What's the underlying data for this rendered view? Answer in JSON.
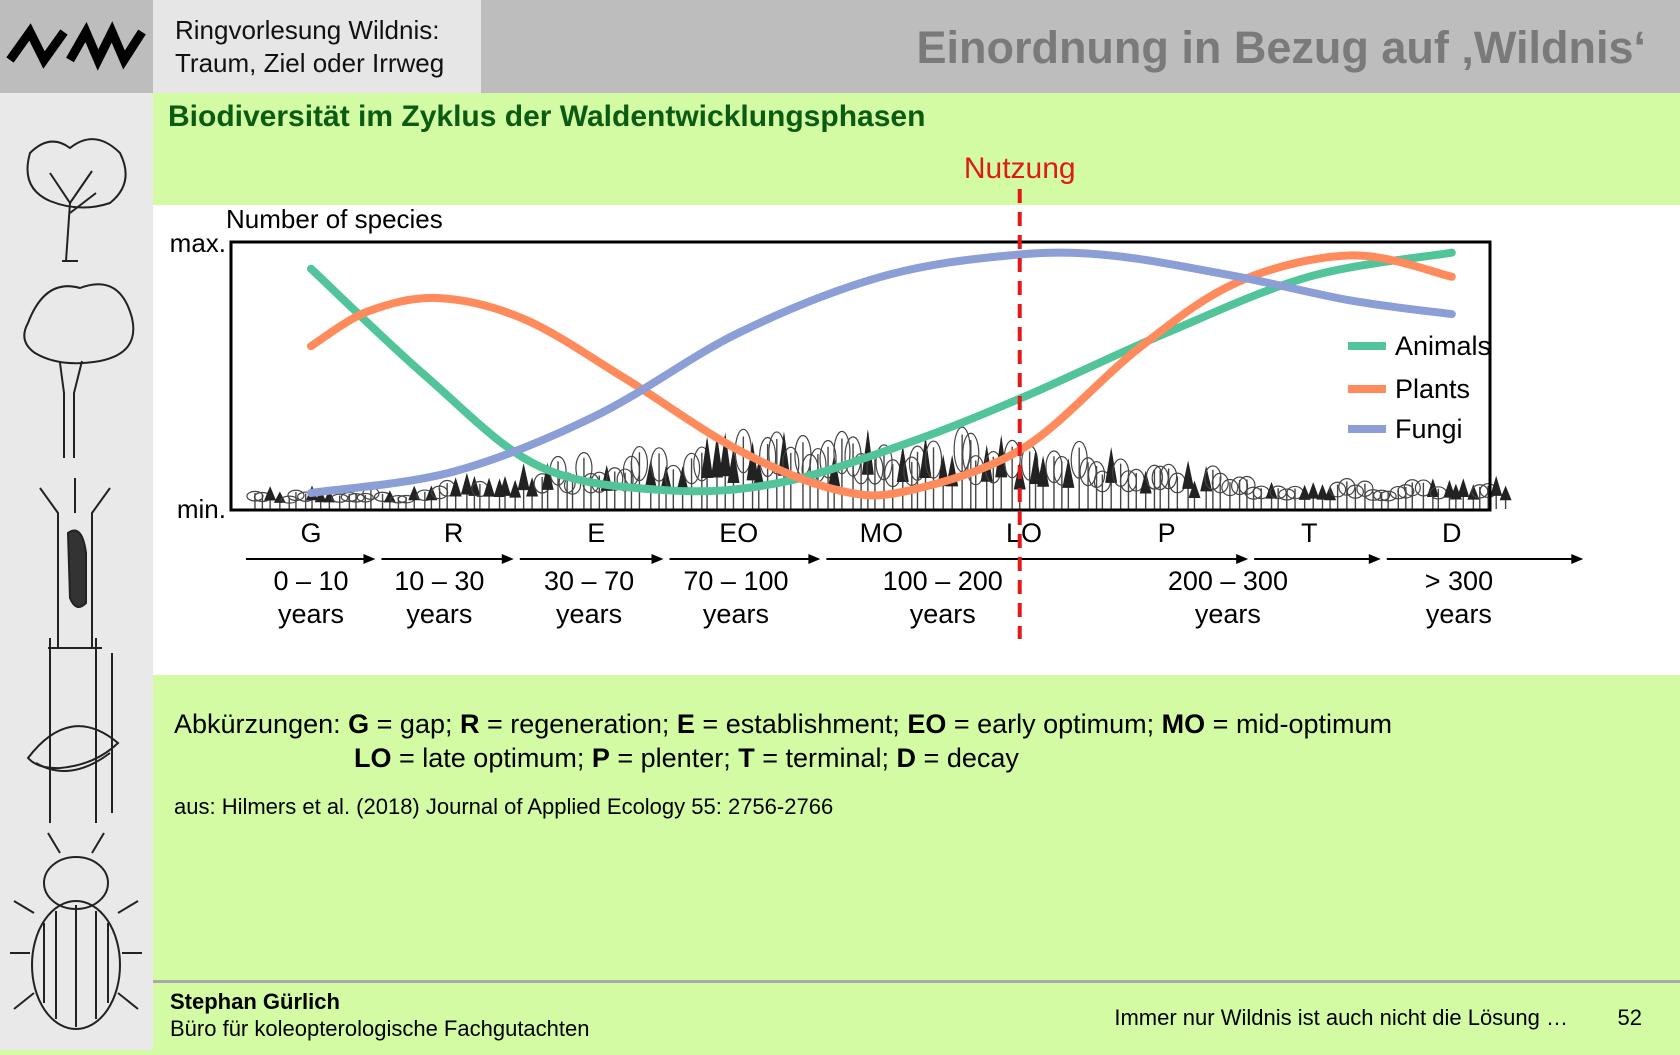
{
  "header": {
    "series_title_line1": "Ringvorlesung Wildnis:",
    "series_title_line2": "Traum, Ziel oder Irrweg",
    "slide_title": "Einordnung in Bezug auf ‚Wildnis‘"
  },
  "subtitle": "Biodiversität im Zyklus der Waldentwicklungsphasen",
  "colors": {
    "animals": "#52c49a",
    "plants": "#ff8a5c",
    "fungi": "#8b9ed6",
    "nutzung": "#e11919",
    "subtitle": "#0b5b12"
  },
  "chart_data": {
    "type": "line",
    "title": "",
    "ylabel": "Number of species",
    "y_tick_max": "max.",
    "y_tick_min": "min.",
    "ylim": [
      0,
      100
    ],
    "x": [
      0,
      1,
      2,
      3,
      4,
      5,
      6,
      7,
      8
    ],
    "phases": [
      "G",
      "R",
      "E",
      "EO",
      "MO",
      "LO",
      "P",
      "T",
      "D"
    ],
    "ages": [
      {
        "line1": "0 – 10",
        "line2": "years",
        "pos": 0.0
      },
      {
        "line1": "10 – 30",
        "line2": "years",
        "pos": 0.9
      },
      {
        "line1": "30 – 70",
        "line2": "years",
        "pos": 1.95
      },
      {
        "line1": "70 – 100",
        "line2": "years",
        "pos": 2.98
      },
      {
        "line1": "100 – 200",
        "line2": "years",
        "pos": 4.43
      },
      {
        "line1": "200 – 300",
        "line2": "years",
        "pos": 6.43
      },
      {
        "line1": "> 300",
        "line2": "years",
        "pos": 8.05
      }
    ],
    "arrow_breaks": [
      -0.47,
      0.48,
      1.45,
      2.5,
      3.6,
      6.6,
      7.53,
      8.95
    ],
    "series": [
      {
        "name": "Animals",
        "color": "#52c49a",
        "values": [
          [
            0.0,
            90
          ],
          [
            0.8,
            50
          ],
          [
            1.6,
            16
          ],
          [
            2.5,
            7
          ],
          [
            3.3,
            10
          ],
          [
            4.2,
            25
          ],
          [
            5.0,
            42
          ],
          [
            6.0,
            66
          ],
          [
            7.0,
            87
          ],
          [
            8.0,
            96
          ]
        ]
      },
      {
        "name": "Plants",
        "color": "#ff8a5c",
        "values": [
          [
            0.0,
            61
          ],
          [
            0.4,
            74
          ],
          [
            0.9,
            79
          ],
          [
            1.5,
            71
          ],
          [
            2.2,
            49
          ],
          [
            3.0,
            22
          ],
          [
            3.7,
            7
          ],
          [
            4.2,
            7
          ],
          [
            5.0,
            23
          ],
          [
            5.8,
            60
          ],
          [
            6.5,
            85
          ],
          [
            7.3,
            95
          ],
          [
            8.0,
            87
          ]
        ]
      },
      {
        "name": "Fungi",
        "color": "#8b9ed6",
        "values": [
          [
            0.0,
            6
          ],
          [
            1.0,
            14
          ],
          [
            2.0,
            35
          ],
          [
            3.0,
            66
          ],
          [
            4.0,
            87
          ],
          [
            4.9,
            95
          ],
          [
            5.6,
            95
          ],
          [
            6.5,
            87
          ],
          [
            7.3,
            78
          ],
          [
            8.0,
            73
          ]
        ]
      }
    ],
    "annotations": [
      {
        "text": "Nutzung",
        "x": 4.97,
        "style": "red dashed vertical line"
      }
    ],
    "legend": "right"
  },
  "abbreviations": {
    "lead": "Abkürzungen:",
    "line1": [
      {
        "k": "G",
        "v": "= gap;"
      },
      {
        "k": "R",
        "v": "= regeneration;"
      },
      {
        "k": "E",
        "v": "= establishment;"
      },
      {
        "k": "EO",
        "v": "= early optimum;"
      },
      {
        "k": "MO",
        "v": "= mid-optimum"
      }
    ],
    "line2": [
      {
        "k": "LO",
        "v": "= late optimum;"
      },
      {
        "k": "P",
        "v": "= plenter;"
      },
      {
        "k": "T",
        "v": "= terminal;"
      },
      {
        "k": "D",
        "v": "= decay"
      }
    ]
  },
  "source": "aus: Hilmers et al. (2018) Journal of Applied Ecology 55: 2756-2766",
  "footer": {
    "author": "Stephan Gürlich",
    "office": "Büro für koleopterologische Fachgutachten",
    "quote": "Immer nur Wildnis ist auch nicht die Lösung …",
    "page": "52"
  }
}
